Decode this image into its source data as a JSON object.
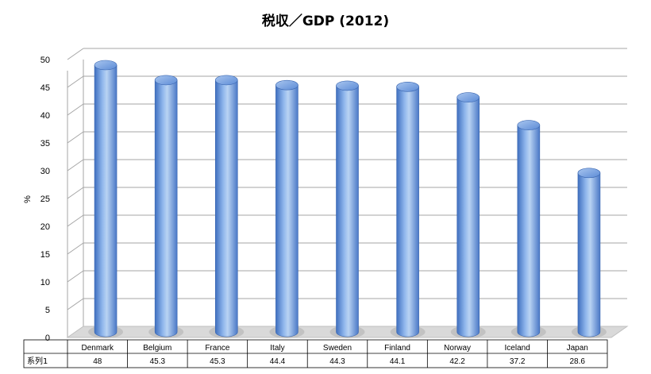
{
  "chart_data": {
    "type": "bar",
    "title": "税収／GDP (2012)",
    "xlabel": "",
    "ylabel": "%",
    "ylim": [
      0,
      50
    ],
    "ytick_step": 5,
    "grid": true,
    "bar_style": "3d-cylinder",
    "categories": [
      "Denmark",
      "Belgium",
      "France",
      "Italy",
      "Sweden",
      "Finland",
      "Norway",
      "Iceland",
      "Japan"
    ],
    "series": [
      {
        "name": "系列1",
        "values": [
          48,
          45.3,
          45.3,
          44.4,
          44.3,
          44.1,
          42.2,
          37.2,
          28.6
        ],
        "value_labels": [
          "48",
          "45.3",
          "45.3",
          "44.4",
          "44.3",
          "44.1",
          "42.2",
          "37.2",
          "28.6"
        ]
      }
    ],
    "data_table": true,
    "colors": {
      "bar_light": "#b9d3f3",
      "bar_mid": "#6f9fe0",
      "bar_dark": "#3f6fbf",
      "grid": "#a6a6a6",
      "floor": "#d4d4d4"
    }
  }
}
